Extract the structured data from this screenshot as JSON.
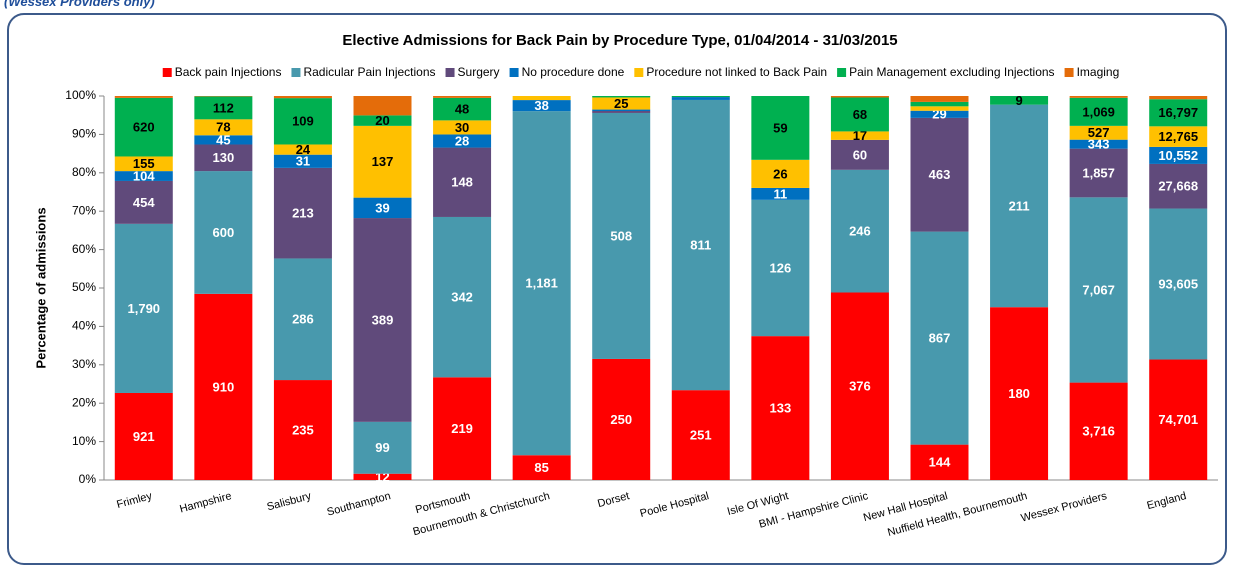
{
  "note": "(Wessex Providers only)",
  "chart_data": {
    "type": "bar",
    "stacked": "percent",
    "title": "Elective Admissions for Back Pain by Procedure Type, 01/04/2014 - 31/03/2015",
    "ylabel": "Percentage of admissions",
    "categories": [
      "Frimley",
      "Hampshire",
      "Salisbury",
      "Southampton",
      "Portsmouth",
      "Bournemouth & Christchurch",
      "Dorset",
      "Poole Hospital",
      "Isle Of Wight",
      "BMI - Hampshire Clinic",
      "New Hall Hospital",
      "Nuffield Health, Bournemouth",
      "Wessex Providers",
      "England"
    ],
    "ylim": [
      0,
      100
    ],
    "yticks": [
      {
        "value": 0,
        "label": "0%"
      },
      {
        "value": 10,
        "label": "10%"
      },
      {
        "value": 20,
        "label": "20%"
      },
      {
        "value": 30,
        "label": "30%"
      },
      {
        "value": 40,
        "label": "40%"
      },
      {
        "value": 50,
        "label": "50%"
      },
      {
        "value": 60,
        "label": "60%"
      },
      {
        "value": 70,
        "label": "70%"
      },
      {
        "value": 80,
        "label": "80%"
      },
      {
        "value": 90,
        "label": "90%"
      },
      {
        "value": 100,
        "label": "100%"
      }
    ],
    "grid": false,
    "legend": "top",
    "series": [
      {
        "name": "Back pain Injections",
        "color": "#ff0000",
        "label_color": "#ffffff",
        "values": [
          921,
          910,
          235,
          12,
          219,
          85,
          250,
          251,
          133,
          376,
          144,
          180,
          3716,
          74701
        ],
        "value_labels": [
          "921",
          "910",
          "235",
          "12",
          "219",
          "85",
          "250",
          "251",
          "133",
          "376",
          "144",
          "180",
          "3,716",
          "74,701"
        ]
      },
      {
        "name": "Radicular Pain Injections",
        "color": "#4899ad",
        "label_color": "#ffffff",
        "values": [
          1790,
          600,
          286,
          99,
          342,
          1181,
          508,
          811,
          126,
          246,
          867,
          211,
          7067,
          93605
        ],
        "value_labels": [
          "1,790",
          "600",
          "286",
          "99",
          "342",
          "1,181",
          "508",
          "811",
          "126",
          "246",
          "867",
          "211",
          "7,067",
          "93,605"
        ]
      },
      {
        "name": "Surgery",
        "color": "#604a7b",
        "label_color": "#ffffff",
        "values": [
          454,
          130,
          213,
          389,
          148,
          0,
          4,
          0,
          0,
          60,
          463,
          0,
          1857,
          27668
        ],
        "value_labels": [
          "454",
          "130",
          "213",
          "389",
          "148",
          null,
          null,
          null,
          null,
          "60",
          "463",
          null,
          "1,857",
          "27,668"
        ]
      },
      {
        "name": "No procedure done",
        "color": "#0070c0",
        "label_color": "#ffffff",
        "values": [
          104,
          45,
          31,
          39,
          28,
          38,
          3,
          8,
          11,
          0,
          29,
          0,
          343,
          10552
        ],
        "value_labels": [
          "104",
          "45",
          "31",
          "39",
          "28",
          "38",
          null,
          null,
          "11",
          null,
          "29",
          null,
          "343",
          "10,552"
        ]
      },
      {
        "name": "Procedure not linked to Back Pain",
        "color": "#ffc000",
        "label_color": "#000000",
        "values": [
          155,
          78,
          24,
          137,
          30,
          14,
          25,
          0,
          26,
          17,
          18,
          0,
          527,
          12765
        ],
        "value_labels": [
          "155",
          "78",
          "24",
          "137",
          "30",
          null,
          "25",
          null,
          "26",
          "17",
          null,
          null,
          "527",
          "12,765"
        ]
      },
      {
        "name": "Pain Management excluding Injections",
        "color": "#00b050",
        "label_color": "#000000",
        "values": [
          620,
          112,
          109,
          20,
          48,
          0,
          3,
          3,
          59,
          68,
          18,
          9,
          1069,
          16797
        ],
        "value_labels": [
          "620",
          "112",
          "109",
          "20",
          "48",
          null,
          null,
          null,
          "59",
          "68",
          null,
          "9",
          "1,069",
          "16,797"
        ]
      },
      {
        "name": "Imaging",
        "color": "#e46c0a",
        "label_color": "#000000",
        "values": [
          20,
          2,
          5,
          37,
          4,
          0,
          0,
          0,
          0,
          3,
          24,
          0,
          70,
          2000
        ],
        "value_labels": [
          null,
          null,
          null,
          null,
          null,
          null,
          null,
          null,
          null,
          null,
          null,
          null,
          null,
          null
        ]
      }
    ]
  }
}
